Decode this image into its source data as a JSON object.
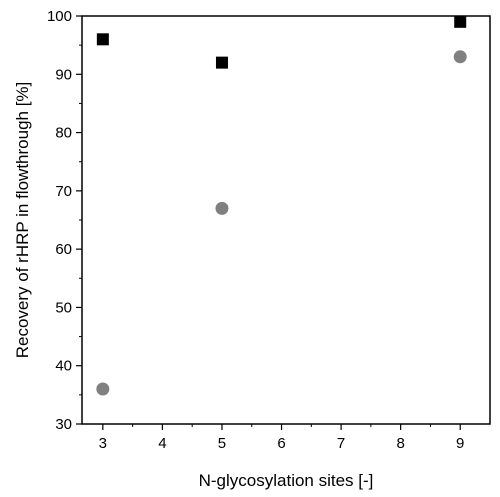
{
  "chart_data": {
    "type": "scatter",
    "xlabel": "N-glycosylation sites [-]",
    "ylabel": "Recovery of rHRP in flowthrough [%]",
    "xlim": [
      2.65,
      9.5
    ],
    "ylim": [
      30,
      100
    ],
    "x_ticks": [
      3,
      4,
      5,
      6,
      7,
      8,
      9
    ],
    "y_ticks": [
      30,
      40,
      50,
      60,
      70,
      80,
      90,
      100
    ],
    "grid": false,
    "legend": "none",
    "series": [
      {
        "marker": "square",
        "color": "#000000",
        "x": [
          3,
          5,
          9
        ],
        "y": [
          96,
          92,
          99
        ]
      },
      {
        "marker": "circle",
        "color": "#808080",
        "x": [
          3,
          5,
          9
        ],
        "y": [
          36,
          67,
          93
        ]
      }
    ]
  }
}
